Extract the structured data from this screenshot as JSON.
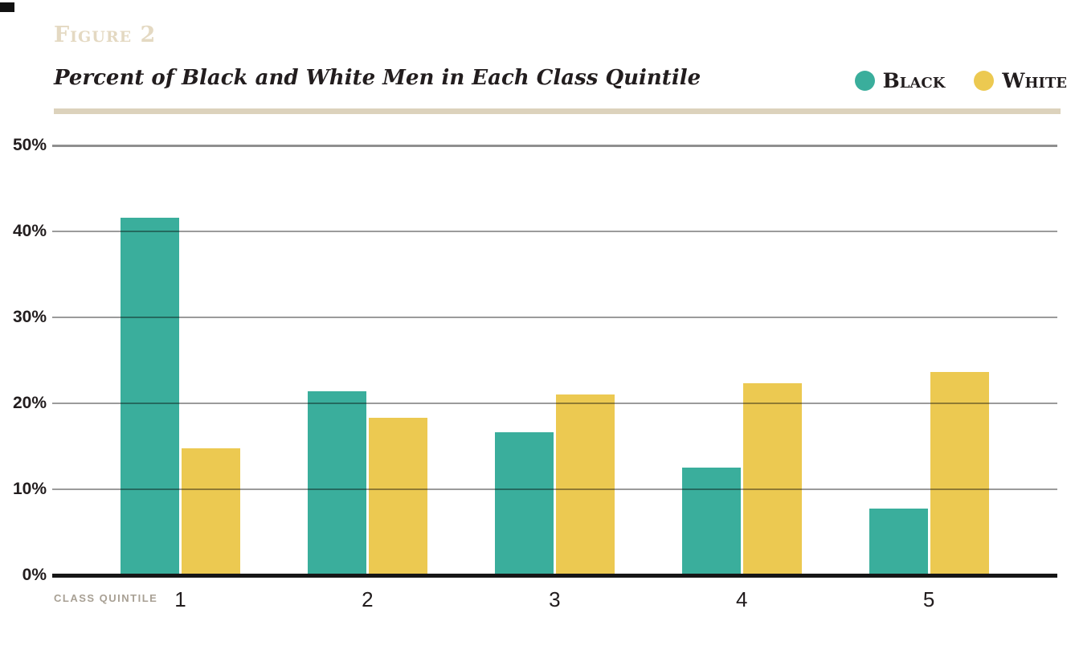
{
  "page": {
    "figure_label": "Figure 2",
    "title": "Percent of Black and White Men in Each Class Quintile",
    "x_axis_label": "Class Quintile"
  },
  "legend": [
    {
      "label": "Black",
      "color": "#3AAE9C"
    },
    {
      "label": "White",
      "color": "#ECC951"
    }
  ],
  "colors": {
    "accent_teal": "#3AAE9C",
    "accent_gold": "#ECC951",
    "divider_beige": "#DCD2BC",
    "figure_label_tan": "#E4D9C2",
    "text_dark": "#221D1E",
    "axis_label_gray": "#A8A094"
  },
  "chart_data": {
    "type": "bar",
    "title": "Percent of Black and White Men in Each Class Quintile",
    "xlabel": "Class Quintile",
    "ylabel": "",
    "categories": [
      "1",
      "2",
      "3",
      "4",
      "5"
    ],
    "series": [
      {
        "name": "Black",
        "color": "#3AAE9C",
        "values": [
          41.6,
          21.4,
          16.6,
          12.5,
          7.8
        ]
      },
      {
        "name": "White",
        "color": "#ECC951",
        "values": [
          14.8,
          18.3,
          21.0,
          22.3,
          23.6
        ]
      }
    ],
    "ylim": [
      0,
      50
    ],
    "yticks": [
      "0%",
      "10%",
      "20%",
      "30%",
      "40%",
      "50%"
    ],
    "grid": true,
    "gridlines_over_bars": true,
    "legend_position": "top-right"
  }
}
